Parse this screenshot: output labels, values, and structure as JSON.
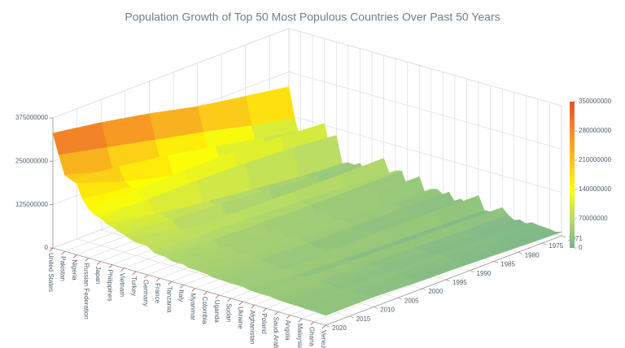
{
  "chart_data": {
    "type": "surface",
    "title": "Population Growth of Top 50 Most Populous Countries Over Past 50 Years",
    "categories": [
      "United States",
      null,
      "Pakistan",
      null,
      "Nigeria",
      null,
      "Russian Federation",
      null,
      "Japan",
      null,
      "Philippines",
      null,
      "Vietnam",
      null,
      "Turkey",
      null,
      "Germany",
      null,
      "France",
      null,
      "Tanzania",
      null,
      "Italy",
      null,
      "Myanmar",
      null,
      "Colombia",
      null,
      "Uganda",
      null,
      "Sudan",
      null,
      "Ukraine",
      null,
      "Afghanistan",
      null,
      "Poland",
      null,
      "Saudi Arabia",
      null,
      "Angola",
      null,
      "Malaysia",
      null,
      "Ghana",
      null,
      "Venezuela"
    ],
    "x": [
      1971,
      1980,
      1990,
      2000,
      2010,
      2020
    ],
    "z": [
      [
        207000000.0,
        227000000.0,
        250000000.0,
        282000000.0,
        309000000.0,
        331000000.0
      ],
      [
        119000000.0,
        147000000.0,
        181000000.0,
        211000000.0,
        242000000.0,
        273000000.0
      ],
      [
        60000000.0,
        80000000.0,
        115000000.0,
        142000000.0,
        179000000.0,
        220000000.0
      ],
      [
        98000000.0,
        121000000.0,
        149000000.0,
        175000000.0,
        196000000.0,
        212000000.0
      ],
      [
        57000000.0,
        73000000.0,
        95000000.0,
        122000000.0,
        158000000.0,
        206000000.0
      ],
      [
        69000000.0,
        83000000.0,
        107000000.0,
        129000000.0,
        148000000.0,
        165000000.0
      ],
      [
        130000000.0,
        139000000.0,
        148000000.0,
        146000000.0,
        143000000.0,
        144000000.0
      ],
      [
        52000000.0,
        68000000.0,
        84000000.0,
        98000000.0,
        114000000.0,
        129000000.0
      ],
      [
        105000000.0,
        117000000.0,
        124000000.0,
        127000000.0,
        128000000.0,
        126000000.0
      ],
      [
        29000000.0,
        35000000.0,
        48000000.0,
        67000000.0,
        88000000.0,
        115000000.0
      ],
      [
        37000000.0,
        47000000.0,
        62000000.0,
        78000000.0,
        94000000.0,
        110000000.0
      ],
      [
        35000000.0,
        43000000.0,
        57000000.0,
        71000000.0,
        87000000.0,
        102000000.0
      ],
      [
        44000000.0,
        54000000.0,
        68000000.0,
        80000000.0,
        88000000.0,
        97000000.0
      ],
      [
        21000000.0,
        27000000.0,
        35000000.0,
        48000000.0,
        66000000.0,
        90000000.0
      ],
      [
        36000000.0,
        44000000.0,
        54000000.0,
        64000000.0,
        73000000.0,
        84000000.0
      ],
      [
        30000000.0,
        38000000.0,
        56000000.0,
        66000000.0,
        74000000.0,
        84000000.0
      ],
      [
        78000000.0,
        78000000.0,
        79000000.0,
        82000000.0,
        81000000.0,
        83000000.0
      ],
      [
        37000000.0,
        47000000.0,
        57000000.0,
        63000000.0,
        67000000.0,
        70000000.0
      ],
      [
        52000000.0,
        54000000.0,
        58000000.0,
        61000000.0,
        65000000.0,
        67000000.0
      ],
      [
        56000000.0,
        56000000.0,
        57000000.0,
        59000000.0,
        63000000.0,
        67000000.0
      ],
      [
        14000000.0,
        19000000.0,
        25000000.0,
        34000000.0,
        45000000.0,
        60000000.0
      ],
      [
        23000000.0,
        29000000.0,
        37000000.0,
        45000000.0,
        51000000.0,
        59000000.0
      ],
      [
        54000000.0,
        56000000.0,
        57000000.0,
        57000000.0,
        59000000.0,
        60000000.0
      ],
      [
        11000000.0,
        16000000.0,
        23000000.0,
        31000000.0,
        42000000.0,
        54000000.0
      ],
      [
        28000000.0,
        33000000.0,
        40000000.0,
        46000000.0,
        50000000.0,
        54000000.0
      ],
      [
        33000000.0,
        38000000.0,
        43000000.0,
        47000000.0,
        49000000.0,
        52000000.0
      ],
      [
        22000000.0,
        27000000.0,
        34000000.0,
        40000000.0,
        45000000.0,
        51000000.0
      ],
      [
        34000000.0,
        37000000.0,
        39000000.0,
        40000000.0,
        47000000.0,
        47000000.0
      ],
      [
        10000000.0,
        13000000.0,
        17000000.0,
        24000000.0,
        32000000.0,
        46000000.0
      ],
      [
        24000000.0,
        28000000.0,
        33000000.0,
        37000000.0,
        41000000.0,
        45000000.0
      ],
      [
        12000000.0,
        16000000.0,
        21000000.0,
        27000000.0,
        34000000.0,
        44000000.0
      ],
      [
        15000000.0,
        19000000.0,
        26000000.0,
        31000000.0,
        36000000.0,
        44000000.0
      ],
      [
        48000000.0,
        50000000.0,
        52000000.0,
        49000000.0,
        46000000.0,
        44000000.0
      ],
      [
        10000000.0,
        14000000.0,
        18000000.0,
        24000000.0,
        30000000.0,
        40000000.0
      ],
      [
        11000000.0,
        13000000.0,
        12000000.0,
        20000000.0,
        28000000.0,
        39000000.0
      ],
      [
        22000000.0,
        24000000.0,
        28000000.0,
        31000000.0,
        34000000.0,
        38000000.0
      ],
      [
        33000000.0,
        35000000.0,
        38000000.0,
        38000000.0,
        38000000.0,
        38000000.0
      ],
      [
        16000000.0,
        19000000.0,
        24000000.0,
        28000000.0,
        32000000.0,
        37000000.0
      ],
      [
        6000000.0,
        10000000.0,
        16000000.0,
        21000000.0,
        28000000.0,
        35000000.0
      ],
      [
        12000000.0,
        16000000.0,
        20000000.0,
        25000000.0,
        28000000.0,
        34000000.0
      ],
      [
        6000000.0,
        8000000.0,
        12000000.0,
        16000000.0,
        23000000.0,
        33000000.0
      ],
      [
        14000000.0,
        17000000.0,
        22000000.0,
        26000000.0,
        29000000.0,
        33000000.0
      ],
      [
        11000000.0,
        14000000.0,
        18000000.0,
        23000000.0,
        28000000.0,
        32000000.0
      ],
      [
        10000000.0,
        12000000.0,
        13000000.0,
        18000000.0,
        24000000.0,
        31000000.0
      ],
      [
        9000000.0,
        11000000.0,
        15000000.0,
        19000000.0,
        25000000.0,
        31000000.0
      ],
      [
        6000000.0,
        8000000.0,
        12000000.0,
        18000000.0,
        23000000.0,
        30000000.0
      ],
      [
        11000000.0,
        15000000.0,
        20000000.0,
        24000000.0,
        29000000.0,
        28000000.0
      ]
    ],
    "xlim": [
      1971,
      2020
    ],
    "xticks": [
      1971,
      1975,
      1980,
      1985,
      1990,
      1995,
      2000,
      2005,
      2010,
      2015,
      2020
    ],
    "zlim": [
      0,
      375000000
    ],
    "zticks": [
      0,
      125000000,
      250000000,
      375000000
    ],
    "clim": [
      0,
      350000000
    ],
    "cticks": [
      0,
      70000000,
      140000000,
      210000000,
      280000000,
      350000000
    ],
    "colorscale": [
      [
        0,
        "#78b48e"
      ],
      [
        0.2,
        "#b9dc66"
      ],
      [
        0.4,
        "#ffff00"
      ],
      [
        0.6,
        "#fbc21c"
      ],
      [
        0.8,
        "#f58a26"
      ],
      [
        1,
        "#e0542c"
      ]
    ],
    "grid": true
  }
}
